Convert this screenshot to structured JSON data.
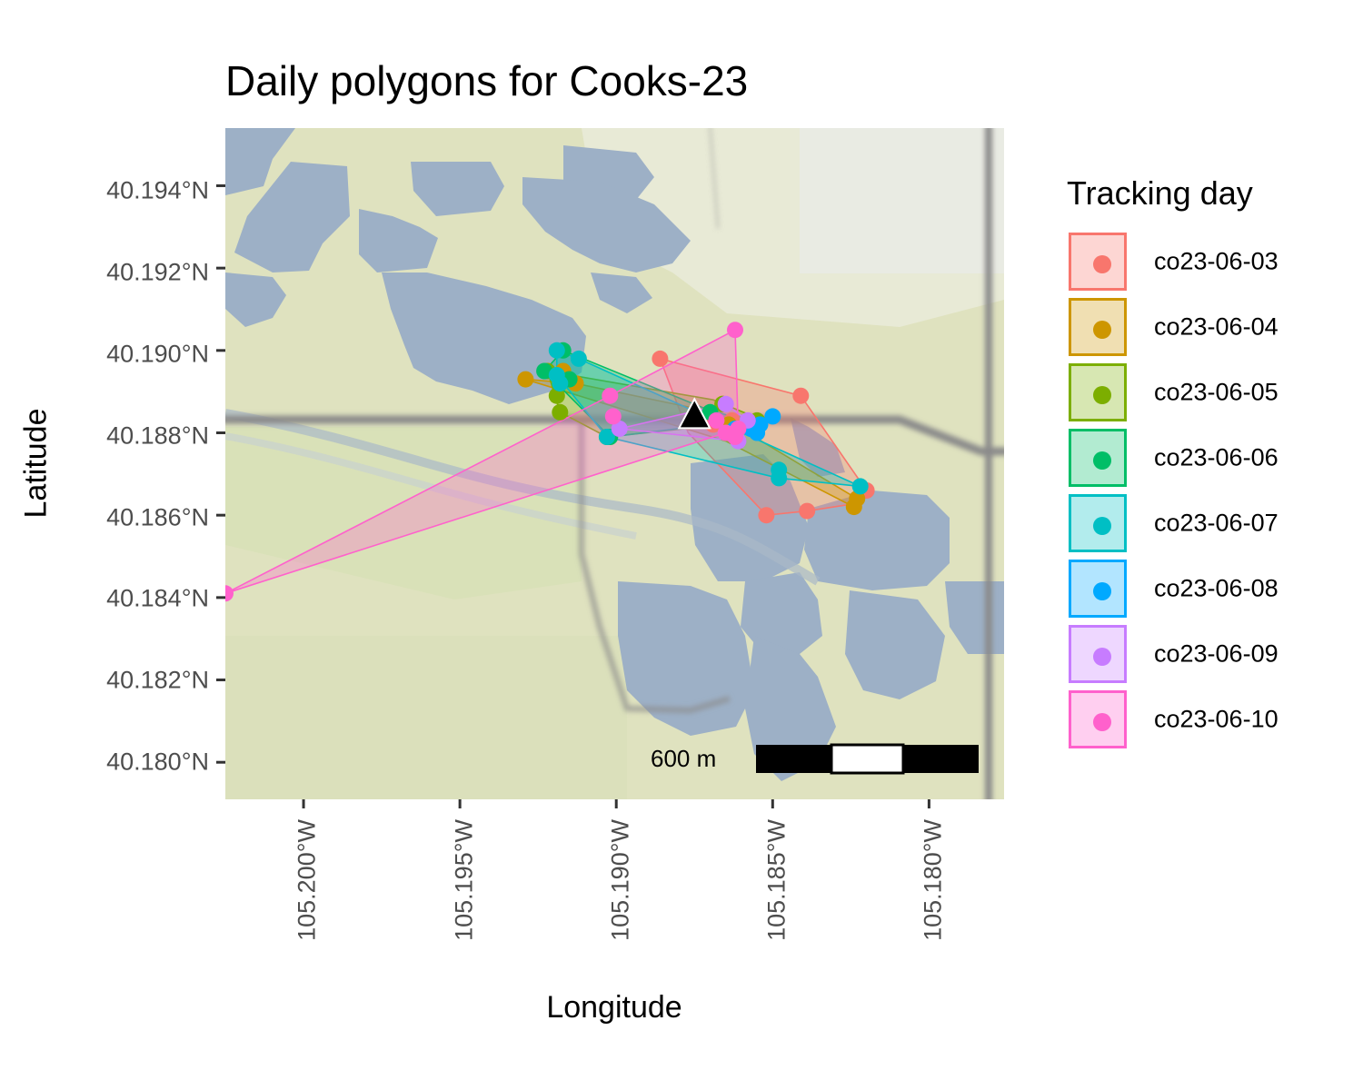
{
  "title": "Daily polygons for Cooks-23",
  "axes": {
    "xlabel": "Longitude",
    "ylabel": "Latitude",
    "x_ticks": [
      "105.200°W",
      "105.195°W",
      "105.190°W",
      "105.185°W",
      "105.180°W"
    ],
    "y_ticks": [
      "40.194°N",
      "40.192°N",
      "40.190°N",
      "40.188°N",
      "40.186°N",
      "40.184°N",
      "40.182°N",
      "40.180°N"
    ]
  },
  "legend": {
    "title": "Tracking day",
    "items": [
      {
        "label": "co23-06-03",
        "color": "#F8766D"
      },
      {
        "label": "co23-06-04",
        "color": "#CD9600"
      },
      {
        "label": "co23-06-05",
        "color": "#7CAE00"
      },
      {
        "label": "co23-06-06",
        "color": "#00BE67"
      },
      {
        "label": "co23-06-07",
        "color": "#00BFC4"
      },
      {
        "label": "co23-06-08",
        "color": "#00A9FF"
      },
      {
        "label": "co23-06-09",
        "color": "#C77CFF"
      },
      {
        "label": "co23-06-10",
        "color": "#FF61CC"
      }
    ]
  },
  "scale_bar": {
    "label": "600 m"
  },
  "marker": {
    "icon": "triangle-icon",
    "color": "#000000"
  },
  "chart_data": {
    "type": "scatter",
    "title": "Daily polygons for Cooks-23",
    "xlabel": "Longitude",
    "ylabel": "Latitude",
    "xlim": [
      -105.2025,
      -105.1776
    ],
    "ylim": [
      40.1791,
      40.1954
    ],
    "x_ticks": [
      -105.2,
      -105.195,
      -105.19,
      -105.185,
      -105.18
    ],
    "y_ticks": [
      40.194,
      40.192,
      40.19,
      40.188,
      40.186,
      40.184,
      40.182,
      40.18
    ],
    "basemap": "terrain",
    "grid": false,
    "legend_position": "right",
    "center_marker": {
      "lon": -105.1875,
      "lat": 40.1884
    },
    "series": [
      {
        "name": "co23-06-03",
        "hull": [
          [
            -105.1886,
            40.1898
          ],
          [
            -105.1841,
            40.1889
          ],
          [
            -105.182,
            40.1866
          ],
          [
            -105.1822,
            40.1863
          ],
          [
            -105.1839,
            40.1861
          ],
          [
            -105.1852,
            40.186
          ],
          [
            -105.1877,
            40.188
          ]
        ],
        "points": [
          [
            -105.1886,
            40.1898
          ],
          [
            -105.1841,
            40.1889
          ],
          [
            -105.182,
            40.1866
          ],
          [
            -105.1839,
            40.1861
          ],
          [
            -105.1852,
            40.186
          ],
          [
            -105.1869,
            40.1882
          ],
          [
            -105.1863,
            40.1883
          ]
        ]
      },
      {
        "name": "co23-06-04",
        "hull": [
          [
            -105.1929,
            40.1893
          ],
          [
            -105.1913,
            40.1892
          ],
          [
            -105.1869,
            40.1885
          ],
          [
            -105.1823,
            40.1864
          ],
          [
            -105.1824,
            40.1862
          ],
          [
            -105.1865,
            40.1878
          ]
        ],
        "points": [
          [
            -105.1929,
            40.1893
          ],
          [
            -105.1913,
            40.1892
          ],
          [
            -105.1917,
            40.1895
          ],
          [
            -105.1823,
            40.1864
          ],
          [
            -105.1824,
            40.1862
          ],
          [
            -105.1866,
            40.1887
          ],
          [
            -105.1864,
            40.1882
          ]
        ]
      },
      {
        "name": "co23-06-05",
        "hull": [
          [
            -105.1922,
            40.1895
          ],
          [
            -105.1869,
            40.1888
          ],
          [
            -105.1853,
            40.1883
          ],
          [
            -105.1903,
            40.1879
          ],
          [
            -105.1918,
            40.1885
          ]
        ],
        "points": [
          [
            -105.1922,
            40.1895
          ],
          [
            -105.1919,
            40.1889
          ],
          [
            -105.1918,
            40.1885
          ],
          [
            -105.1903,
            40.1879
          ],
          [
            -105.1866,
            40.1887
          ],
          [
            -105.1855,
            40.1883
          ]
        ]
      },
      {
        "name": "co23-06-06",
        "hull": [
          [
            -105.1923,
            40.1895
          ],
          [
            -105.1917,
            40.19
          ],
          [
            -105.1872,
            40.1886
          ],
          [
            -105.1859,
            40.1883
          ],
          [
            -105.1902,
            40.1879
          ]
        ],
        "points": [
          [
            -105.1923,
            40.1895
          ],
          [
            -105.1917,
            40.19
          ],
          [
            -105.1915,
            40.1893
          ],
          [
            -105.1902,
            40.1879
          ],
          [
            -105.187,
            40.1885
          ]
        ]
      },
      {
        "name": "co23-06-07",
        "hull": [
          [
            -105.1919,
            40.19
          ],
          [
            -105.1912,
            40.1898
          ],
          [
            -105.1822,
            40.1867
          ],
          [
            -105.1848,
            40.1869
          ],
          [
            -105.1903,
            40.1879
          ],
          [
            -105.1919,
            40.1894
          ]
        ],
        "points": [
          [
            -105.1919,
            40.19
          ],
          [
            -105.1912,
            40.1898
          ],
          [
            -105.1918,
            40.1892
          ],
          [
            -105.1919,
            40.1894
          ],
          [
            -105.1822,
            40.1867
          ],
          [
            -105.1848,
            40.1869
          ],
          [
            -105.1848,
            40.1871
          ],
          [
            -105.1903,
            40.1879
          ]
        ]
      },
      {
        "name": "co23-06-08",
        "hull": [
          [
            -105.185,
            40.1884
          ],
          [
            -105.1855,
            40.188
          ],
          [
            -105.1862,
            40.1881
          ],
          [
            -105.1857,
            40.1881
          ]
        ],
        "points": [
          [
            -105.185,
            40.1884
          ],
          [
            -105.1854,
            40.1882
          ],
          [
            -105.1857,
            40.1881
          ],
          [
            -105.1855,
            40.188
          ],
          [
            -105.1862,
            40.1881
          ]
        ]
      },
      {
        "name": "co23-06-09",
        "hull": [
          [
            -105.1865,
            40.1887
          ],
          [
            -105.1858,
            40.1883
          ],
          [
            -105.1861,
            40.1878
          ],
          [
            -105.1899,
            40.1881
          ]
        ],
        "points": [
          [
            -105.1865,
            40.1887
          ],
          [
            -105.1858,
            40.1883
          ],
          [
            -105.1861,
            40.1878
          ],
          [
            -105.1899,
            40.1881
          ]
        ]
      },
      {
        "name": "co23-06-10",
        "hull": [
          [
            -105.1862,
            40.1905
          ],
          [
            -105.1861,
            40.1881
          ],
          [
            -105.2025,
            40.1841
          ],
          [
            -105.1902,
            40.1889
          ]
        ],
        "points": [
          [
            -105.1862,
            40.1905
          ],
          [
            -105.1902,
            40.1889
          ],
          [
            -105.1901,
            40.1884
          ],
          [
            -105.1861,
            40.1881
          ],
          [
            -105.1868,
            40.1883
          ],
          [
            -105.1865,
            40.188
          ],
          [
            -105.1862,
            40.1879
          ],
          [
            -105.2025,
            40.1841
          ]
        ]
      }
    ]
  }
}
